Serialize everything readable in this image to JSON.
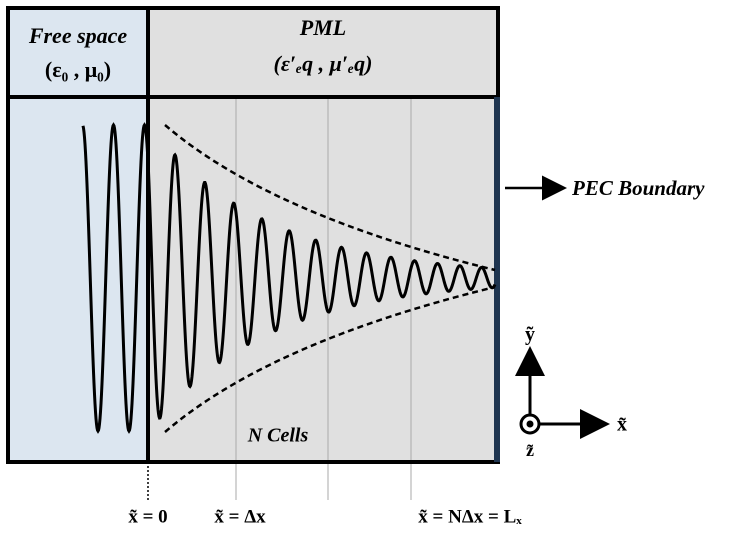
{
  "header": {
    "free_space": {
      "title": "Free space",
      "params": "(ε₀ , μ₀)"
    },
    "pml": {
      "title": "PML",
      "params": "(ε′ₑq , μ′ₑq)"
    }
  },
  "labels": {
    "pec_boundary": "PEC Boundary",
    "n_cells": "N Cells"
  },
  "positions": [
    "x̃ = 0",
    "x̃ = Δx",
    "x̃ = NΔx = Lₓ"
  ],
  "axes": {
    "y": "ỹ",
    "x": "x̃",
    "z": "z̃"
  }
}
